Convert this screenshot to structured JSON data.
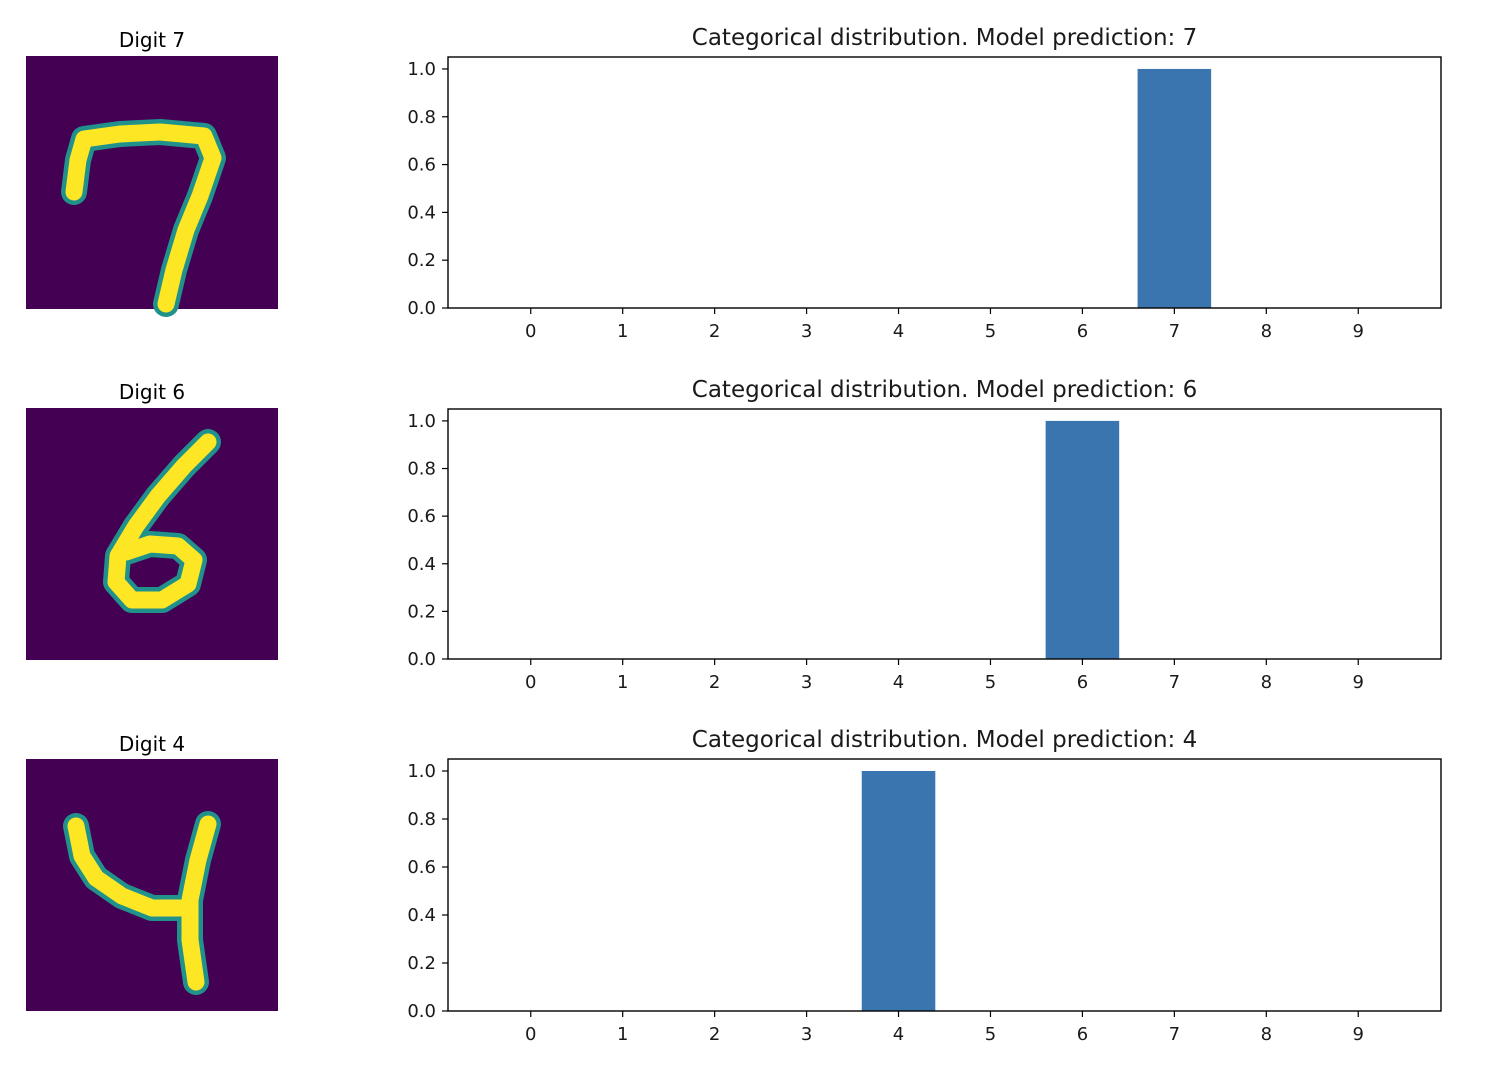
{
  "colors": {
    "bar": "#3a75af",
    "digit_background": "#440154",
    "digit_ink": "#fde725",
    "digit_edge": "#21918c",
    "axes": "#000000"
  },
  "panels": [
    {
      "digit_title": "Digit 7",
      "digit_image_label": "handwritten digit 7 (MNIST image)"
    },
    {
      "digit_title": "Digit 6",
      "digit_image_label": "handwritten digit 6 (MNIST image)"
    },
    {
      "digit_title": "Digit 4",
      "digit_image_label": "handwritten digit 4 (MNIST image)"
    }
  ],
  "chart_data": [
    {
      "type": "bar",
      "title": "Categorical distribution. Model prediction: 7",
      "xlabel": "",
      "ylabel": "",
      "categories": [
        "0",
        "1",
        "2",
        "3",
        "4",
        "5",
        "6",
        "7",
        "8",
        "9"
      ],
      "values": [
        0,
        0,
        0,
        0,
        0,
        0,
        0,
        1.0,
        0,
        0
      ],
      "ylim": [
        0,
        1.05
      ],
      "yticks": [
        "0.0",
        "0.2",
        "0.4",
        "0.6",
        "0.8",
        "1.0"
      ],
      "grid": false,
      "legend": "none"
    },
    {
      "type": "bar",
      "title": "Categorical distribution. Model prediction: 6",
      "xlabel": "",
      "ylabel": "",
      "categories": [
        "0",
        "1",
        "2",
        "3",
        "4",
        "5",
        "6",
        "7",
        "8",
        "9"
      ],
      "values": [
        0,
        0,
        0,
        0,
        0,
        0,
        1.0,
        0,
        0,
        0
      ],
      "ylim": [
        0,
        1.05
      ],
      "yticks": [
        "0.0",
        "0.2",
        "0.4",
        "0.6",
        "0.8",
        "1.0"
      ],
      "grid": false,
      "legend": "none"
    },
    {
      "type": "bar",
      "title": "Categorical distribution. Model prediction: 4",
      "xlabel": "",
      "ylabel": "",
      "categories": [
        "0",
        "1",
        "2",
        "3",
        "4",
        "5",
        "6",
        "7",
        "8",
        "9"
      ],
      "values": [
        0,
        0,
        0,
        0,
        1.0,
        0,
        0,
        0,
        0,
        0
      ],
      "ylim": [
        0,
        1.05
      ],
      "yticks": [
        "0.0",
        "0.2",
        "0.4",
        "0.6",
        "0.8",
        "1.0"
      ],
      "grid": false,
      "legend": "none"
    }
  ]
}
